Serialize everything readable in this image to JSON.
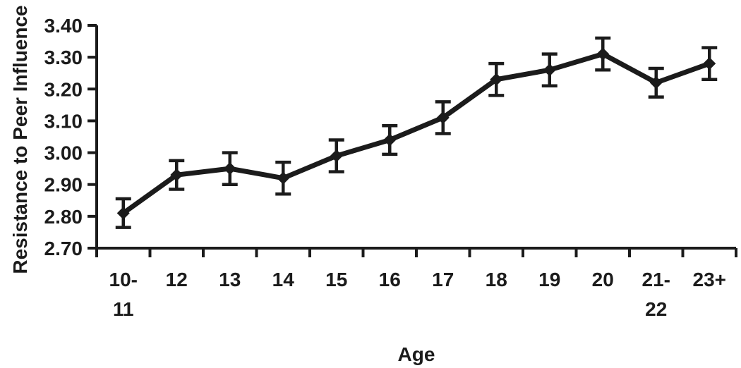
{
  "figure": {
    "background": "#ffffff",
    "ink_color": "#1b1b1b"
  },
  "chart_data": {
    "type": "line",
    "title": "",
    "xlabel": "Age",
    "ylabel": "Resistance to Peer Influence",
    "categories": [
      "10-11",
      "12",
      "13",
      "14",
      "15",
      "16",
      "17",
      "18",
      "19",
      "20",
      "21-22",
      "23+"
    ],
    "xtick_label_lines": [
      [
        "10-",
        "11"
      ],
      [
        "12"
      ],
      [
        "13"
      ],
      [
        "14"
      ],
      [
        "15"
      ],
      [
        "16"
      ],
      [
        "17"
      ],
      [
        "18"
      ],
      [
        "19"
      ],
      [
        "20"
      ],
      [
        "21-",
        "22"
      ],
      [
        "23+"
      ]
    ],
    "series": [
      {
        "name": "Resistance to Peer Influence",
        "values": [
          2.81,
          2.93,
          2.95,
          2.92,
          2.99,
          3.04,
          3.11,
          3.23,
          3.26,
          3.31,
          3.22,
          3.28
        ],
        "errors": [
          0.045,
          0.045,
          0.05,
          0.05,
          0.05,
          0.045,
          0.05,
          0.05,
          0.05,
          0.05,
          0.045,
          0.05
        ]
      }
    ],
    "ylim": [
      2.7,
      3.4
    ],
    "ytick_step": 0.1,
    "ytick_labels": [
      "2.70",
      "2.80",
      "2.90",
      "3.00",
      "3.10",
      "3.20",
      "3.30",
      "3.40"
    ],
    "marker": "diamond",
    "error_bars": true,
    "grid": false,
    "legend": "none"
  }
}
